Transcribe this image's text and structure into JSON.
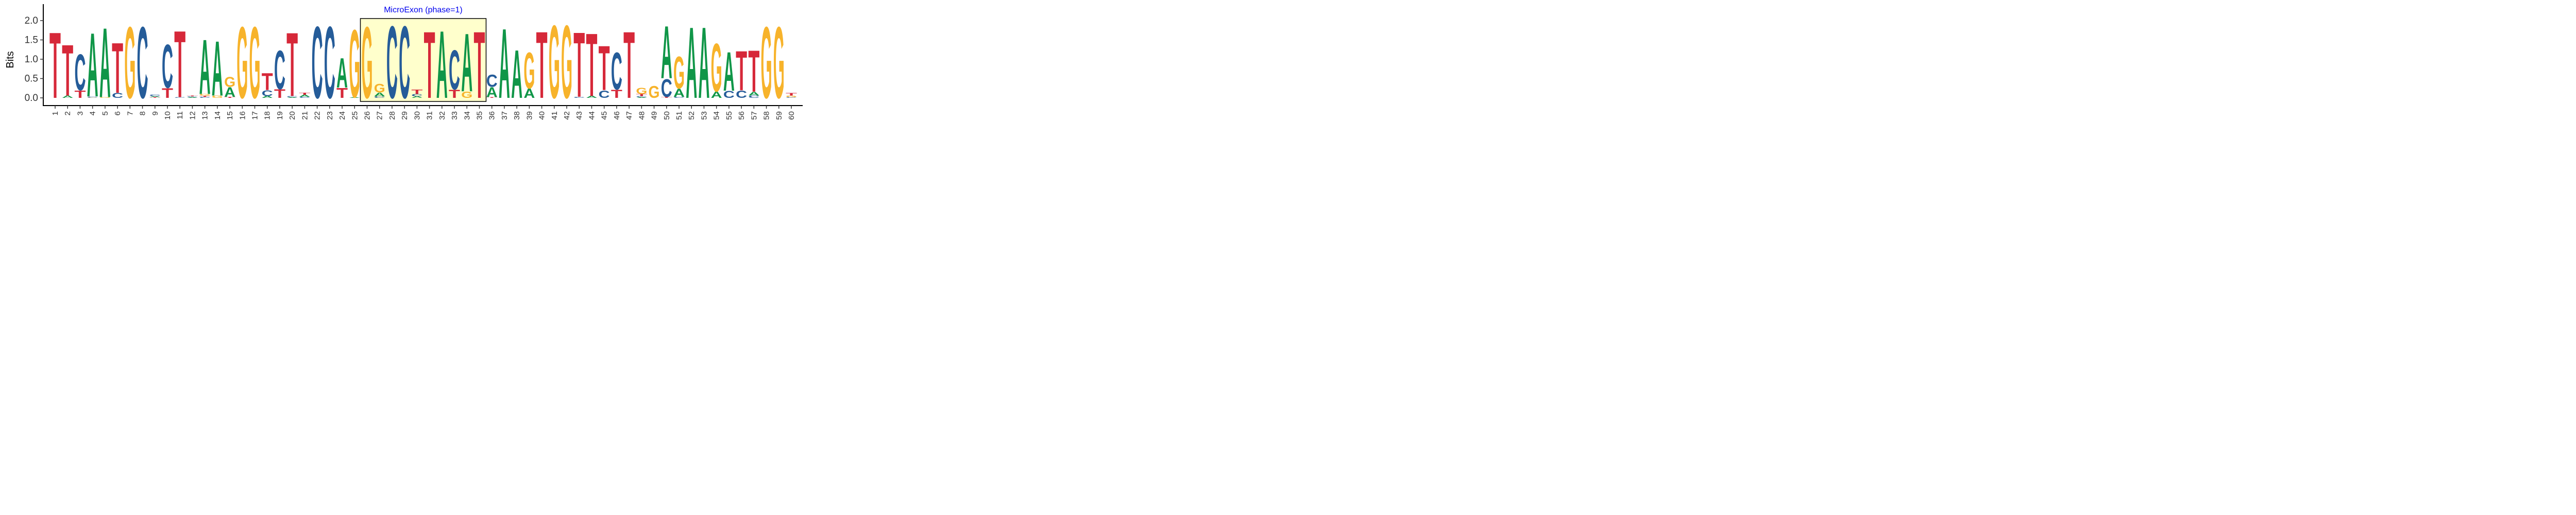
{
  "chart_data": {
    "type": "sequence-logo",
    "title": "",
    "xlabel": "",
    "ylabel": "Bits",
    "ylim": [
      0,
      2.4
    ],
    "y_ticks": [
      "0.0",
      "0.5",
      "1.0",
      "1.5",
      "2.0"
    ],
    "grid": false,
    "colors": {
      "A": "#109648",
      "C": "#255C99",
      "G": "#F7B32B",
      "T": "#D62839"
    },
    "annotation": {
      "label": "MicroExon (phase=1)",
      "start_position": 26,
      "end_position": 35,
      "fill": "#FFFFCC",
      "label_color": "#0000EE"
    },
    "positions": [
      {
        "pos": "1",
        "letters": {
          "A": 0.0,
          "C": 0.0,
          "G": 0.0,
          "T": 1.78
        }
      },
      {
        "pos": "2",
        "letters": {
          "A": 0.06,
          "C": 0.0,
          "G": 0.0,
          "T": 1.38
        }
      },
      {
        "pos": "3",
        "letters": {
          "A": 0.0,
          "C": 0.98,
          "G": 0.0,
          "T": 0.2
        }
      },
      {
        "pos": "4",
        "letters": {
          "A": 1.72,
          "C": 0.03,
          "G": 0.01,
          "T": 0.0
        }
      },
      {
        "pos": "5",
        "letters": {
          "A": 1.88,
          "C": 0.0,
          "G": 0.02,
          "T": 0.0
        }
      },
      {
        "pos": "6",
        "letters": {
          "A": 0.0,
          "C": 0.13,
          "G": 0.0,
          "T": 1.36
        }
      },
      {
        "pos": "7",
        "letters": {
          "A": 0.0,
          "C": 0.0,
          "G": 1.93,
          "T": 0.0
        }
      },
      {
        "pos": "8",
        "letters": {
          "A": 0.0,
          "C": 1.93,
          "G": 0.0,
          "T": 0.0
        }
      },
      {
        "pos": "9",
        "letters": {
          "A": 0.03,
          "C": 0.04,
          "G": 0.0,
          "T": 0.02
        }
      },
      {
        "pos": "10",
        "letters": {
          "A": 0.0,
          "C": 1.17,
          "G": 0.0,
          "T": 0.26
        }
      },
      {
        "pos": "11",
        "letters": {
          "A": 0.0,
          "C": 0.02,
          "G": 0.0,
          "T": 1.8
        }
      },
      {
        "pos": "12",
        "letters": {
          "A": 0.02,
          "C": 0.02,
          "G": 0.0,
          "T": 0.02
        }
      },
      {
        "pos": "13",
        "letters": {
          "A": 1.48,
          "C": 0.03,
          "G": 0.04,
          "T": 0.03
        }
      },
      {
        "pos": "14",
        "letters": {
          "A": 1.48,
          "C": 0.0,
          "G": 0.06,
          "T": 0.0
        }
      },
      {
        "pos": "15",
        "letters": {
          "A": 0.26,
          "C": 0.0,
          "G": 0.27,
          "T": 0.03
        }
      },
      {
        "pos": "16",
        "letters": {
          "A": 0.0,
          "C": 0.0,
          "G": 1.93,
          "T": 0.0
        }
      },
      {
        "pos": "17",
        "letters": {
          "A": 0.0,
          "C": 0.0,
          "G": 1.93,
          "T": 0.0
        }
      },
      {
        "pos": "18",
        "letters": {
          "A": 0.05,
          "C": 0.15,
          "G": 0.0,
          "T": 0.46
        }
      },
      {
        "pos": "19",
        "letters": {
          "A": 0.0,
          "C": 1.05,
          "G": 0.0,
          "T": 0.23
        }
      },
      {
        "pos": "20",
        "letters": {
          "A": 0.02,
          "C": 0.03,
          "G": 0.0,
          "T": 1.72
        }
      },
      {
        "pos": "21",
        "letters": {
          "A": 0.05,
          "C": 0.03,
          "G": 0.0,
          "T": 0.05
        }
      },
      {
        "pos": "22",
        "letters": {
          "A": 0.0,
          "C": 1.94,
          "G": 0.0,
          "T": 0.0
        }
      },
      {
        "pos": "23",
        "letters": {
          "A": 0.0,
          "C": 1.94,
          "G": 0.0,
          "T": 0.0
        }
      },
      {
        "pos": "24",
        "letters": {
          "A": 0.8,
          "C": 0.0,
          "G": 0.0,
          "T": 0.27
        }
      },
      {
        "pos": "25",
        "letters": {
          "A": 0.02,
          "C": 0.0,
          "G": 1.83,
          "T": 0.0
        }
      },
      {
        "pos": "26",
        "letters": {
          "A": 0.0,
          "C": 0.0,
          "G": 1.93,
          "T": 0.0
        }
      },
      {
        "pos": "27",
        "letters": {
          "A": 0.1,
          "C": 0.04,
          "G": 0.23,
          "T": 0.0
        }
      },
      {
        "pos": "28",
        "letters": {
          "A": 0.0,
          "C": 1.95,
          "G": 0.0,
          "T": 0.0
        }
      },
      {
        "pos": "29",
        "letters": {
          "A": 0.0,
          "C": 1.95,
          "G": 0.0,
          "T": 0.0
        }
      },
      {
        "pos": "30",
        "letters": {
          "A": 0.04,
          "C": 0.06,
          "G": 0.0,
          "T": 0.12
        }
      },
      {
        "pos": "31",
        "letters": {
          "A": 0.0,
          "C": 0.0,
          "G": 0.0,
          "T": 1.8
        }
      },
      {
        "pos": "32",
        "letters": {
          "A": 1.82,
          "C": 0.0,
          "G": 0.0,
          "T": 0.0
        }
      },
      {
        "pos": "33",
        "letters": {
          "A": 0.0,
          "C": 1.07,
          "G": 0.0,
          "T": 0.22
        }
      },
      {
        "pos": "34",
        "letters": {
          "A": 1.57,
          "C": 0.0,
          "G": 0.17,
          "T": 0.0
        }
      },
      {
        "pos": "35",
        "letters": {
          "A": 0.0,
          "C": 0.0,
          "G": 0.0,
          "T": 1.8
        }
      },
      {
        "pos": "36",
        "letters": {
          "A": 0.27,
          "C": 0.33,
          "G": 0.0,
          "T": 0.02
        }
      },
      {
        "pos": "37",
        "letters": {
          "A": 1.88,
          "C": 0.0,
          "G": 0.0,
          "T": 0.0
        }
      },
      {
        "pos": "38",
        "letters": {
          "A": 1.3,
          "C": 0.0,
          "G": 0.0,
          "T": 0.0
        }
      },
      {
        "pos": "39",
        "letters": {
          "A": 0.25,
          "C": 0.0,
          "G": 0.98,
          "T": 0.0
        }
      },
      {
        "pos": "40",
        "letters": {
          "A": 0.0,
          "C": 0.0,
          "G": 0.0,
          "T": 1.8
        }
      },
      {
        "pos": "41",
        "letters": {
          "A": 0.0,
          "C": 0.0,
          "G": 1.97,
          "T": 0.0
        }
      },
      {
        "pos": "42",
        "letters": {
          "A": 0.0,
          "C": 0.0,
          "G": 1.97,
          "T": 0.0
        }
      },
      {
        "pos": "43",
        "letters": {
          "A": 0.0,
          "C": 0.03,
          "G": 0.0,
          "T": 1.75
        }
      },
      {
        "pos": "44",
        "letters": {
          "A": 0.05,
          "C": 0.0,
          "G": 0.0,
          "T": 1.7
        }
      },
      {
        "pos": "45",
        "letters": {
          "A": 0.0,
          "C": 0.2,
          "G": 0.0,
          "T": 1.2
        }
      },
      {
        "pos": "46",
        "letters": {
          "A": 0.0,
          "C": 1.0,
          "G": 0.0,
          "T": 0.22
        }
      },
      {
        "pos": "47",
        "letters": {
          "A": 0.0,
          "C": 0.0,
          "G": 0.0,
          "T": 1.8
        }
      },
      {
        "pos": "48",
        "letters": {
          "A": 0.02,
          "C": 0.03,
          "G": 0.17,
          "T": 0.05
        }
      },
      {
        "pos": "49",
        "letters": {
          "A": 0.0,
          "C": 0.0,
          "G": 0.32,
          "T": 0.0
        }
      },
      {
        "pos": "50",
        "letters": {
          "A": 1.42,
          "C": 0.48,
          "G": 0.0,
          "T": 0.03
        }
      },
      {
        "pos": "51",
        "letters": {
          "A": 0.22,
          "C": 0.03,
          "G": 0.87,
          "T": 0.0
        }
      },
      {
        "pos": "52",
        "letters": {
          "A": 1.92,
          "C": 0.0,
          "G": 0.0,
          "T": 0.0
        }
      },
      {
        "pos": "53",
        "letters": {
          "A": 1.92,
          "C": 0.0,
          "G": 0.0,
          "T": 0.0
        }
      },
      {
        "pos": "54",
        "letters": {
          "A": 0.17,
          "C": 0.0,
          "G": 1.3,
          "T": 0.0
        }
      },
      {
        "pos": "55",
        "letters": {
          "A": 1.05,
          "C": 0.19,
          "G": 0.0,
          "T": 0.0
        }
      },
      {
        "pos": "56",
        "letters": {
          "A": 0.0,
          "C": 0.2,
          "G": 0.0,
          "T": 1.07
        }
      },
      {
        "pos": "57",
        "letters": {
          "A": 0.1,
          "C": 0.06,
          "G": 0.0,
          "T": 1.12
        }
      },
      {
        "pos": "58",
        "letters": {
          "A": 0.0,
          "C": 0.0,
          "G": 1.93,
          "T": 0.0
        }
      },
      {
        "pos": "59",
        "letters": {
          "A": 0.0,
          "C": 0.0,
          "G": 1.93,
          "T": 0.0
        }
      },
      {
        "pos": "60",
        "letters": {
          "A": 0.0,
          "C": 0.02,
          "G": 0.04,
          "T": 0.07
        }
      }
    ]
  }
}
